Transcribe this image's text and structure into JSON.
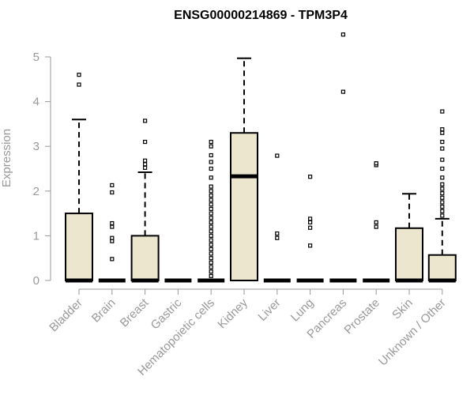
{
  "chart_data": {
    "type": "boxplot",
    "title": "ENSG00000214869 - TPM3P4",
    "xlabel": "",
    "ylabel": "Expression",
    "ylim": [
      0,
      5
    ],
    "yticks": [
      "0",
      "1",
      "2",
      "3",
      "4",
      "5"
    ],
    "colors": {
      "box_fill": "#ede6cf",
      "box_stroke": "#000000",
      "axis": "#999999",
      "text": "#999999"
    },
    "categories": [
      "Bladder",
      "Brain",
      "Breast",
      "Gastric",
      "Hematopoietic cells",
      "Kidney",
      "Liver",
      "Lung",
      "Pancreas",
      "Prostate",
      "Skin",
      "Unknown / Other"
    ],
    "boxes": [
      {
        "category": "Bladder",
        "q1": 0,
        "median": 0,
        "q3": 1.5,
        "whisker_low": 0,
        "whisker_high": 3.6,
        "outliers": [
          4.38,
          4.6
        ]
      },
      {
        "category": "Brain",
        "q1": 0,
        "median": 0,
        "q3": 0,
        "whisker_low": 0,
        "whisker_high": 0,
        "outliers": [
          0.48,
          0.88,
          0.95,
          1.2,
          1.28,
          1.97,
          2.13
        ]
      },
      {
        "category": "Breast",
        "q1": 0,
        "median": 0,
        "q3": 1.0,
        "whisker_low": 0,
        "whisker_high": 2.42,
        "outliers": [
          2.52,
          2.6,
          2.68,
          3.1,
          3.57
        ]
      },
      {
        "category": "Gastric",
        "q1": 0,
        "median": 0,
        "q3": 0,
        "whisker_low": 0,
        "whisker_high": 0,
        "outliers": []
      },
      {
        "category": "Hematopoietic cells",
        "q1": 0,
        "median": 0,
        "q3": 0,
        "whisker_low": 0,
        "whisker_high": 0,
        "outliers": [
          0.1,
          0.2,
          0.3,
          0.4,
          0.5,
          0.6,
          0.7,
          0.8,
          0.9,
          1.0,
          1.1,
          1.2,
          1.3,
          1.4,
          1.5,
          1.6,
          1.7,
          1.8,
          1.9,
          2.0,
          2.1,
          2.3,
          2.5,
          2.65,
          2.8,
          3.0,
          3.1
        ]
      },
      {
        "category": "Kidney",
        "q1": 0,
        "median": 2.33,
        "q3": 3.3,
        "whisker_low": 0,
        "whisker_high": 4.97,
        "outliers": []
      },
      {
        "category": "Liver",
        "q1": 0,
        "median": 0,
        "q3": 0,
        "whisker_low": 0,
        "whisker_high": 0,
        "outliers": [
          0.95,
          1.05,
          2.79
        ]
      },
      {
        "category": "Lung",
        "q1": 0,
        "median": 0,
        "q3": 0,
        "whisker_low": 0,
        "whisker_high": 0,
        "outliers": [
          0.78,
          1.18,
          1.3,
          1.38,
          2.32
        ]
      },
      {
        "category": "Pancreas",
        "q1": 0,
        "median": 0,
        "q3": 0,
        "whisker_low": 0,
        "whisker_high": 0,
        "outliers": [
          4.22,
          5.5
        ]
      },
      {
        "category": "Prostate",
        "q1": 0,
        "median": 0,
        "q3": 0,
        "whisker_low": 0,
        "whisker_high": 0,
        "outliers": [
          1.2,
          1.3,
          2.58,
          2.62
        ]
      },
      {
        "category": "Skin",
        "q1": 0,
        "median": 0,
        "q3": 1.17,
        "whisker_low": 0,
        "whisker_high": 1.94,
        "outliers": []
      },
      {
        "category": "Unknown / Other",
        "q1": 0,
        "median": 0,
        "q3": 0.57,
        "whisker_low": 0,
        "whisker_high": 1.38,
        "outliers": [
          1.45,
          1.55,
          1.65,
          1.75,
          1.85,
          1.95,
          2.05,
          2.15,
          2.3,
          2.5,
          2.7,
          2.95,
          3.1,
          3.3,
          3.38,
          3.78
        ]
      }
    ]
  }
}
